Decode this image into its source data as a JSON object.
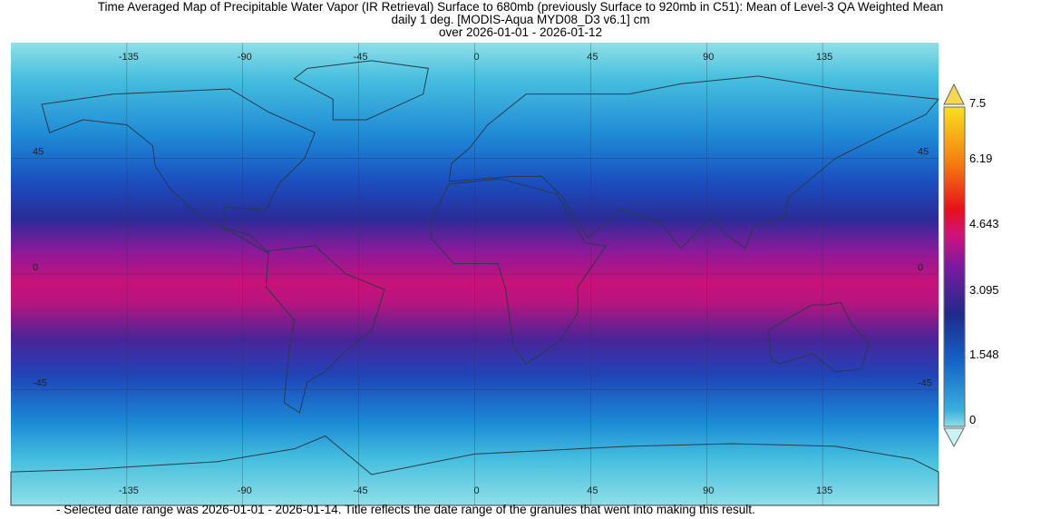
{
  "title": {
    "line1": "Time Averaged Map of Precipitable Water Vapor (IR Retrieval) Surface to 680mb (previously Surface to 920mb in C51): Mean of Level-3 QA Weighted Mean",
    "line2": "daily 1 deg. [MODIS-Aqua MYD08_D3 v6.1] cm",
    "line3": "over 2026-01-01 - 2026-01-12"
  },
  "map": {
    "projection": "equirectangular",
    "lon_range": [
      -180,
      180
    ],
    "lat_range": [
      -90,
      90
    ],
    "lon_labels": [
      "-135",
      "-90",
      "-45",
      "0",
      "45",
      "90",
      "135"
    ],
    "lat_labels": [
      "45",
      "0",
      "-45"
    ],
    "gridlines": true
  },
  "colorbar": {
    "ticks": [
      "7.5",
      "6.19",
      "4.643",
      "3.095",
      "1.548",
      "0"
    ],
    "range": [
      0,
      7.5
    ],
    "unit": "cm",
    "colors": [
      "#b8eef2",
      "#3ab0dc",
      "#1565c8",
      "#1f2a8c",
      "#7a1aa0",
      "#d0127a",
      "#e8101a",
      "#f47a10",
      "#f8e020"
    ],
    "extend_both": true
  },
  "footnote": "- Selected date range was 2026-01-01 - 2026-01-14. Title reflects the date range of the granules that went into making this result."
}
